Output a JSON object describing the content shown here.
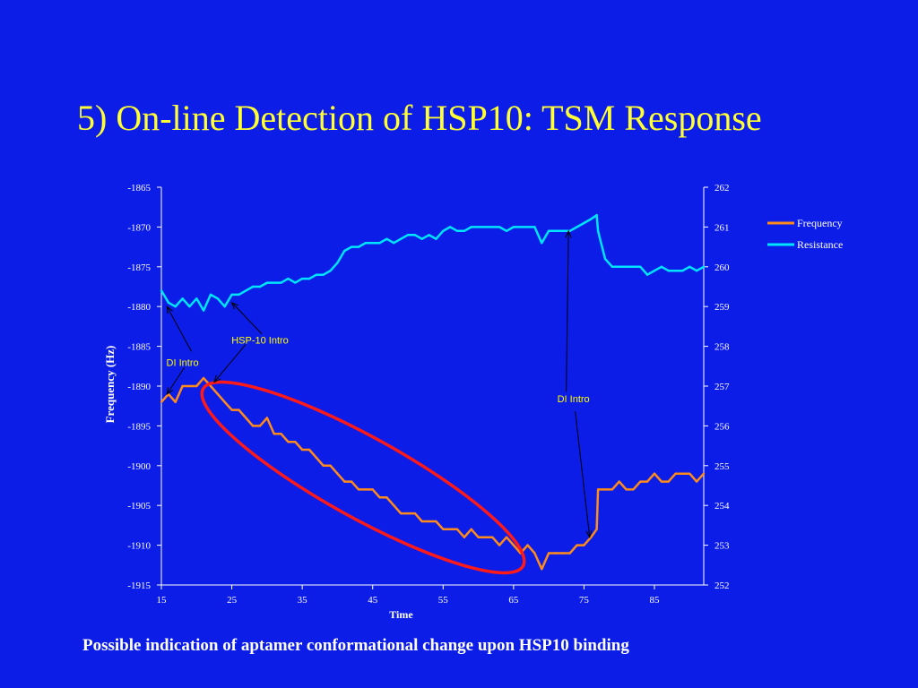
{
  "slide": {
    "title": "5) On-line Detection of HSP10: TSM Response",
    "caption": "Possible indication of aptamer conformational change upon HSP10 binding"
  },
  "colors": {
    "background": "#0c1de8",
    "title": "#ffff33",
    "frequency": "#ff8c1a",
    "resistance": "#00e5ff",
    "ellipse": "#ff1a1a",
    "text": "#ffffff",
    "annotation_text": "#ffff00"
  },
  "chart_data": {
    "type": "line",
    "title": "",
    "xlabel": "Time",
    "ylabel": "Frequency (Hz)",
    "y2label": "",
    "xlim": [
      15,
      92
    ],
    "xticks": [
      "15",
      "25",
      "35",
      "45",
      "55",
      "65",
      "75",
      "85"
    ],
    "ylim": [
      -1915,
      -1865
    ],
    "yticks": [
      "-1865",
      "-1870",
      "-1875",
      "-1880",
      "-1885",
      "-1890",
      "-1895",
      "-1900",
      "-1905",
      "-1910",
      "-1915"
    ],
    "y2lim": [
      252,
      262
    ],
    "y2ticks": [
      "262",
      "261",
      "260",
      "259",
      "258",
      "257",
      "256",
      "255",
      "254",
      "253",
      "252"
    ],
    "legend_position": "top-right",
    "series": [
      {
        "name": "Frequency",
        "axis": "left",
        "x": [
          15,
          16,
          17,
          18,
          19,
          20,
          21,
          22,
          23,
          24,
          25,
          26,
          27,
          28,
          29,
          30,
          31,
          32,
          33,
          34,
          35,
          36,
          37,
          38,
          39,
          40,
          41,
          42,
          43,
          44,
          45,
          46,
          47,
          48,
          49,
          50,
          51,
          52,
          53,
          54,
          55,
          56,
          57,
          58,
          59,
          60,
          61,
          62,
          63,
          64,
          65,
          66,
          67,
          68,
          69,
          70,
          71,
          72,
          73,
          74,
          75,
          76,
          76.8,
          77,
          78,
          79,
          80,
          81,
          82,
          83,
          84,
          85,
          86,
          87,
          88,
          89,
          90,
          91,
          92
        ],
        "values": [
          -1892,
          -1891,
          -1892,
          -1890,
          -1890,
          -1890,
          -1889,
          -1890,
          -1891,
          -1892,
          -1893,
          -1893,
          -1894,
          -1895,
          -1895,
          -1894,
          -1896,
          -1896,
          -1897,
          -1897,
          -1898,
          -1898,
          -1899,
          -1900,
          -1900,
          -1901,
          -1902,
          -1902,
          -1903,
          -1903,
          -1903,
          -1904,
          -1904,
          -1905,
          -1906,
          -1906,
          -1906,
          -1907,
          -1907,
          -1907,
          -1908,
          -1908,
          -1908,
          -1909,
          -1908,
          -1909,
          -1909,
          -1909,
          -1910,
          -1909,
          -1910,
          -1911,
          -1910,
          -1911,
          -1913,
          -1911,
          -1911,
          -1911,
          -1911,
          -1910,
          -1910,
          -1909,
          -1908,
          -1903,
          -1903,
          -1903,
          -1902,
          -1903,
          -1903,
          -1902,
          -1902,
          -1901,
          -1902,
          -1902,
          -1901,
          -1901,
          -1901,
          -1902,
          -1901
        ]
      },
      {
        "name": "Resistance",
        "axis": "right",
        "x": [
          15,
          16,
          17,
          18,
          19,
          20,
          21,
          22,
          23,
          24,
          25,
          26,
          27,
          28,
          29,
          30,
          31,
          32,
          33,
          34,
          35,
          36,
          37,
          38,
          39,
          40,
          41,
          42,
          43,
          44,
          45,
          46,
          47,
          48,
          49,
          50,
          51,
          52,
          53,
          54,
          55,
          56,
          57,
          58,
          59,
          60,
          61,
          62,
          63,
          64,
          65,
          66,
          67,
          68,
          69,
          70,
          71,
          72,
          73,
          74,
          75,
          76,
          76.8,
          77,
          78,
          79,
          80,
          81,
          82,
          83,
          84,
          85,
          86,
          87,
          88,
          89,
          90,
          91,
          92
        ],
        "values": [
          259.4,
          259.1,
          259.0,
          259.2,
          259.0,
          259.2,
          258.9,
          259.3,
          259.2,
          259.0,
          259.3,
          259.3,
          259.4,
          259.5,
          259.5,
          259.6,
          259.6,
          259.6,
          259.7,
          259.6,
          259.7,
          259.7,
          259.8,
          259.8,
          259.9,
          260.1,
          260.4,
          260.5,
          260.5,
          260.6,
          260.6,
          260.6,
          260.7,
          260.6,
          260.7,
          260.8,
          260.8,
          260.7,
          260.8,
          260.7,
          260.9,
          261.0,
          260.9,
          260.9,
          261.0,
          261.0,
          261.0,
          261.0,
          261.0,
          260.9,
          261.0,
          261.0,
          261.0,
          261.0,
          260.6,
          260.9,
          260.9,
          260.9,
          260.9,
          261.0,
          261.1,
          261.2,
          261.3,
          260.9,
          260.2,
          260.0,
          260.0,
          260.0,
          260.0,
          260.0,
          259.8,
          259.9,
          260.0,
          259.9,
          259.9,
          259.9,
          260.0,
          259.9,
          260.0
        ]
      }
    ],
    "annotations": [
      {
        "text": "DI Intro",
        "x": 18,
        "y2": 257.6
      },
      {
        "text": "HSP-10 Intro",
        "x": 29,
        "y2": 258
      },
      {
        "text": "DI Intro",
        "x": 73.5,
        "y2": 256.5
      }
    ]
  }
}
